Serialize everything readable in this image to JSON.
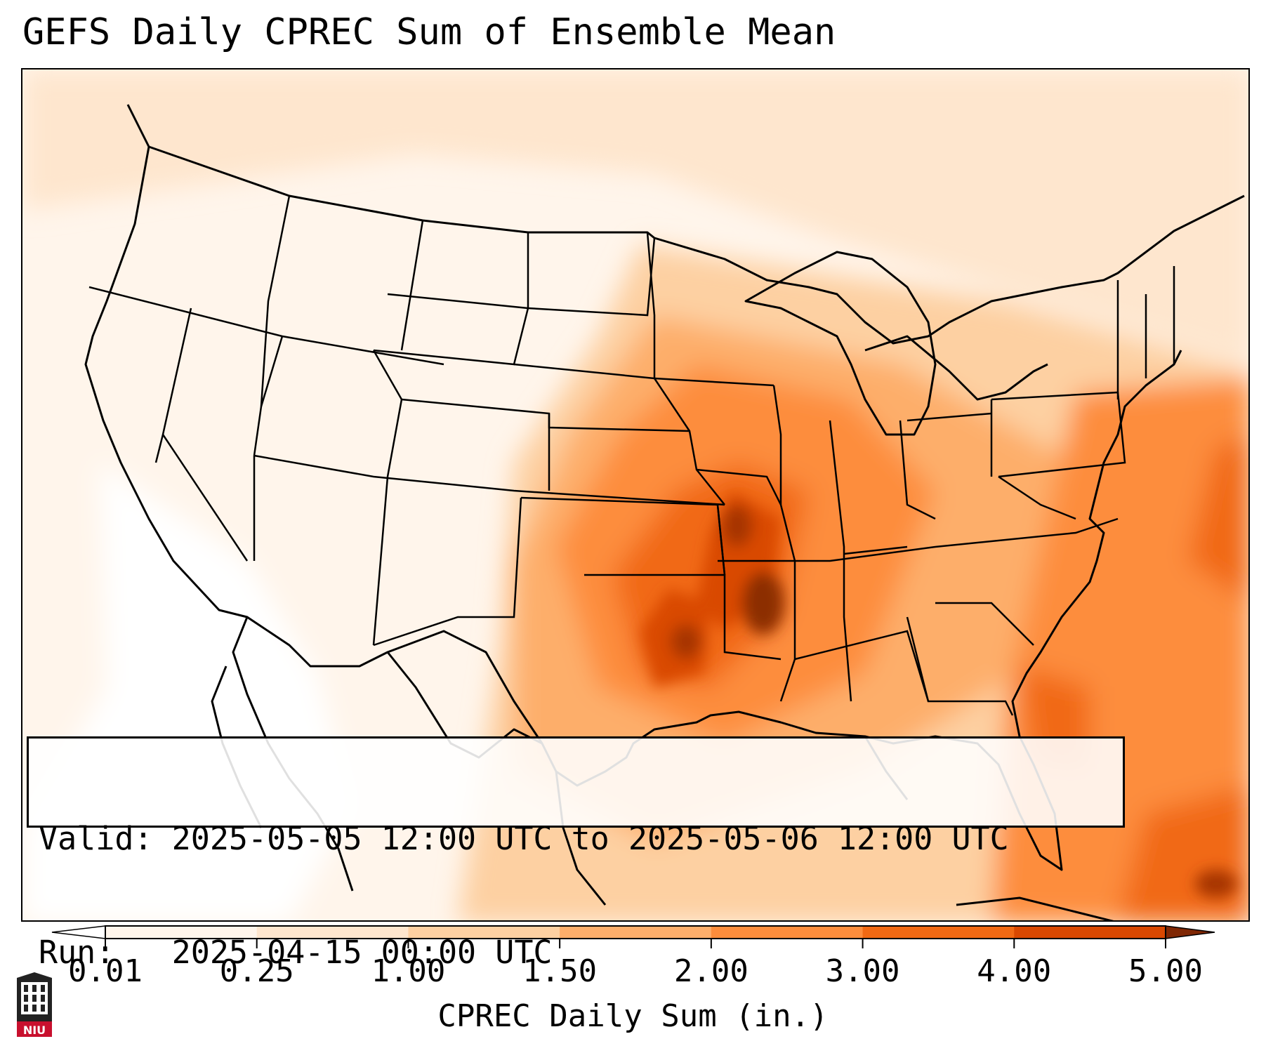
{
  "title": "GEFS Daily CPREC Sum of Ensemble Mean",
  "info": {
    "valid_label": "Valid:",
    "valid_value": "2025-05-05 12:00 UTC to 2025-05-06 12:00 UTC",
    "run_label": "Run:",
    "run_value": "2025-04-15 00:00 UTC"
  },
  "colorbar": {
    "label": "CPREC Daily Sum (in.)",
    "ticks": [
      "0.01",
      "0.25",
      "1.00",
      "1.50",
      "2.00",
      "3.00",
      "4.00",
      "5.00"
    ],
    "colors": [
      "#fff5eb",
      "#fee6ce",
      "#fdd0a2",
      "#fdae6b",
      "#fd8d3c",
      "#f16913",
      "#d94801",
      "#8c2d04"
    ],
    "under_color": "#ffffff",
    "over_color": "#7f2704"
  },
  "logo": {
    "text": "NIU",
    "color": "#c8102e"
  },
  "map": {
    "projection": "conus-lambert",
    "heaviest_area": "Missouri / Arkansas / Oklahoma",
    "variable": "CPREC"
  }
}
